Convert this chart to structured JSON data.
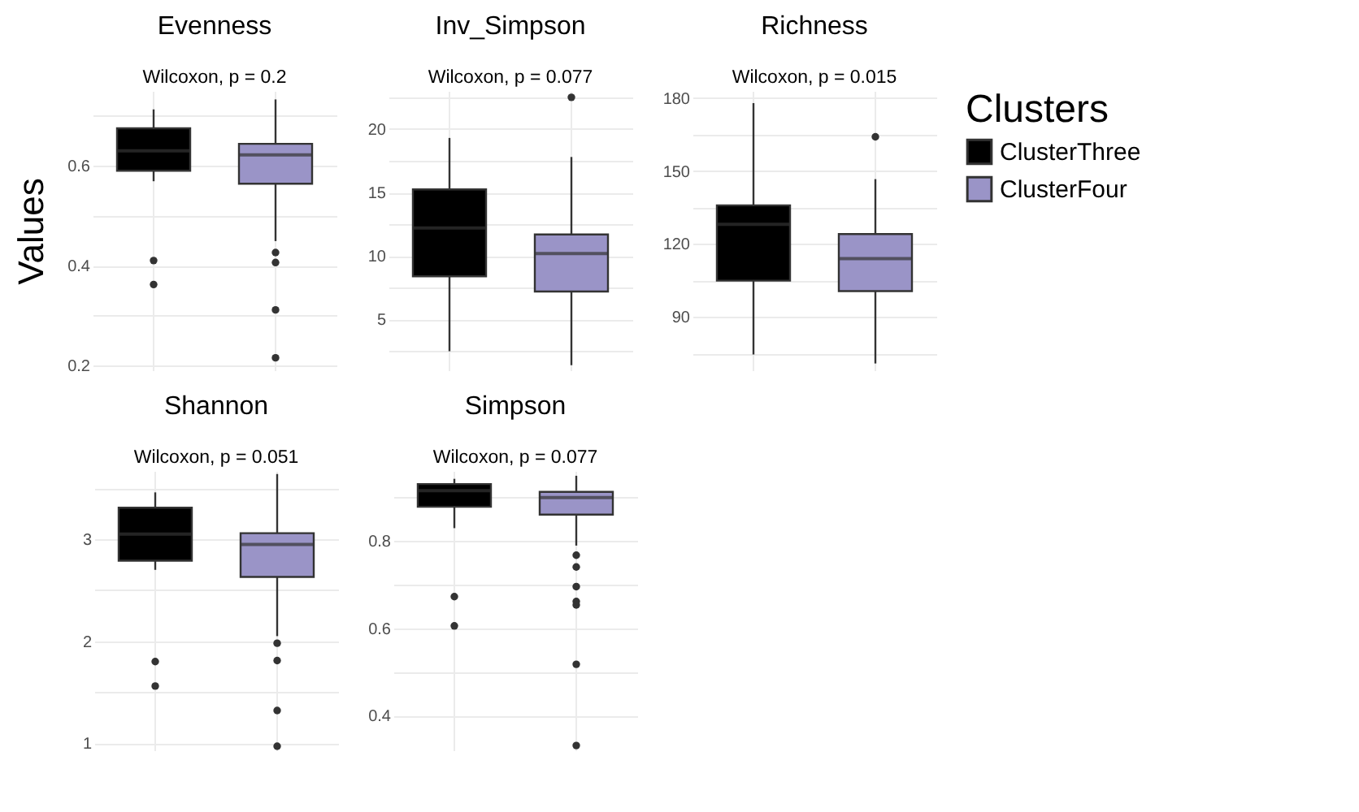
{
  "chart_data": [
    {
      "type": "box",
      "title": "Evenness",
      "ylabel": "Values",
      "categories": [
        null,
        null
      ],
      "ylim": [
        0.19,
        0.75
      ],
      "yticks": [
        0.2,
        {
          "value": 0.3,
          "label": null
        },
        0.4,
        {
          "value": 0.5,
          "label": null
        },
        0.6,
        {
          "value": 0.7,
          "label": null
        }
      ],
      "grid": true,
      "annotations": [
        "Wilcoxon, p = 0.2"
      ],
      "series": [
        {
          "color": "#000000",
          "boxes": [
            {
              "low": 0.569,
              "q1": 0.59,
              "median": 0.63,
              "q3": 0.675,
              "high": 0.713,
              "outliers": [
                0.41,
                0.362
              ]
            },
            null
          ]
        },
        {
          "color": "#9a94c7",
          "boxes": [
            null,
            {
              "low": 0.449,
              "q1": 0.564,
              "median": 0.622,
              "q3": 0.644,
              "high": 0.733,
              "outliers": [
                0.426,
                0.406,
                0.311,
                0.215
              ]
            }
          ]
        }
      ]
    },
    {
      "type": "box",
      "title": "Inv_Simpson",
      "categories": [
        null,
        null
      ],
      "ylim": [
        1,
        23
      ],
      "yticks": [
        {
          "value": 2.5,
          "label": null
        },
        5,
        {
          "value": 7.5,
          "label": null
        },
        10,
        {
          "value": 12.5,
          "label": null
        },
        15,
        {
          "value": 17.5,
          "label": null
        },
        20,
        {
          "value": 22.5,
          "label": null
        }
      ],
      "grid": true,
      "annotations": [
        "Wilcoxon, p = 0.077"
      ],
      "series": [
        {
          "color": "#000000",
          "boxes": [
            {
              "low": 2.5,
              "q1": 8.4,
              "median": 12.2,
              "q3": 15.25,
              "high": 19.3
            },
            null
          ]
        },
        {
          "color": "#9a94c7",
          "boxes": [
            null,
            {
              "low": 1.4,
              "q1": 7.2,
              "median": 10.2,
              "q3": 11.7,
              "high": 17.8,
              "outliers": [
                22.5
              ]
            }
          ]
        }
      ]
    },
    {
      "type": "box",
      "title": "Richness",
      "categories": [
        null,
        null
      ],
      "ylim": [
        68,
        183
      ],
      "yticks": [
        {
          "value": 75,
          "label": null
        },
        90,
        {
          "value": 105,
          "label": null
        },
        120,
        {
          "value": 135,
          "label": null
        },
        150,
        {
          "value": 165,
          "label": null
        },
        180
      ],
      "grid": true,
      "legend": "right",
      "legend_title": "Clusters",
      "annotations": [
        "Wilcoxon, p = 0.015"
      ],
      "series": [
        {
          "name": "ClusterThree",
          "color": "#000000",
          "boxes": [
            {
              "low": 74.5,
              "q1": 104.9,
              "median": 128.1,
              "q3": 135.9,
              "high": 178
            },
            null
          ]
        },
        {
          "name": "ClusterFour",
          "color": "#9a94c7",
          "boxes": [
            null,
            {
              "low": 70.8,
              "q1": 100.6,
              "median": 114,
              "q3": 124.1,
              "high": 146.7,
              "outliers": [
                164.1
              ]
            }
          ]
        }
      ]
    },
    {
      "type": "box",
      "title": "Shannon",
      "categories": [
        null,
        null
      ],
      "ylim": [
        0.93,
        3.67
      ],
      "yticks": [
        1,
        {
          "value": 1.5,
          "label": null
        },
        2,
        {
          "value": 2.5,
          "label": null
        },
        3,
        {
          "value": 3.5,
          "label": null
        }
      ],
      "grid": true,
      "annotations": [
        "Wilcoxon, p = 0.051"
      ],
      "series": [
        {
          "color": "#000000",
          "boxes": [
            {
              "low": 2.7,
              "q1": 2.79,
              "median": 3.05,
              "q3": 3.31,
              "high": 3.46,
              "outliers": [
                1.8,
                1.56
              ]
            },
            null
          ]
        },
        {
          "color": "#9a94c7",
          "boxes": [
            null,
            {
              "low": 2.05,
              "q1": 2.63,
              "median": 2.95,
              "q3": 3.06,
              "high": 3.64,
              "outliers": [
                1.98,
                1.81,
                1.32,
                0.97
              ]
            }
          ]
        }
      ]
    },
    {
      "type": "box",
      "title": "Simpson",
      "categories": [
        null,
        null
      ],
      "ylim": [
        0.32,
        0.96
      ],
      "yticks": [
        0.4,
        {
          "value": 0.5,
          "label": null
        },
        0.6,
        {
          "value": 0.7,
          "label": null
        },
        0.8,
        {
          "value": 0.9,
          "label": null
        }
      ],
      "grid": true,
      "annotations": [
        "Wilcoxon, p = 0.077"
      ],
      "series": [
        {
          "color": "#000000",
          "boxes": [
            {
              "low": 0.829,
              "q1": 0.878,
              "median": 0.915,
              "q3": 0.93,
              "high": 0.942,
              "outliers": [
                0.672,
                0.605
              ]
            },
            null
          ]
        },
        {
          "color": "#9a94c7",
          "boxes": [
            null,
            {
              "low": 0.789,
              "q1": 0.86,
              "median": 0.899,
              "q3": 0.912,
              "high": 0.949,
              "outliers": [
                0.767,
                0.74,
                0.695,
                0.661,
                0.653,
                0.517,
                0.331
              ]
            }
          ]
        }
      ]
    }
  ]
}
